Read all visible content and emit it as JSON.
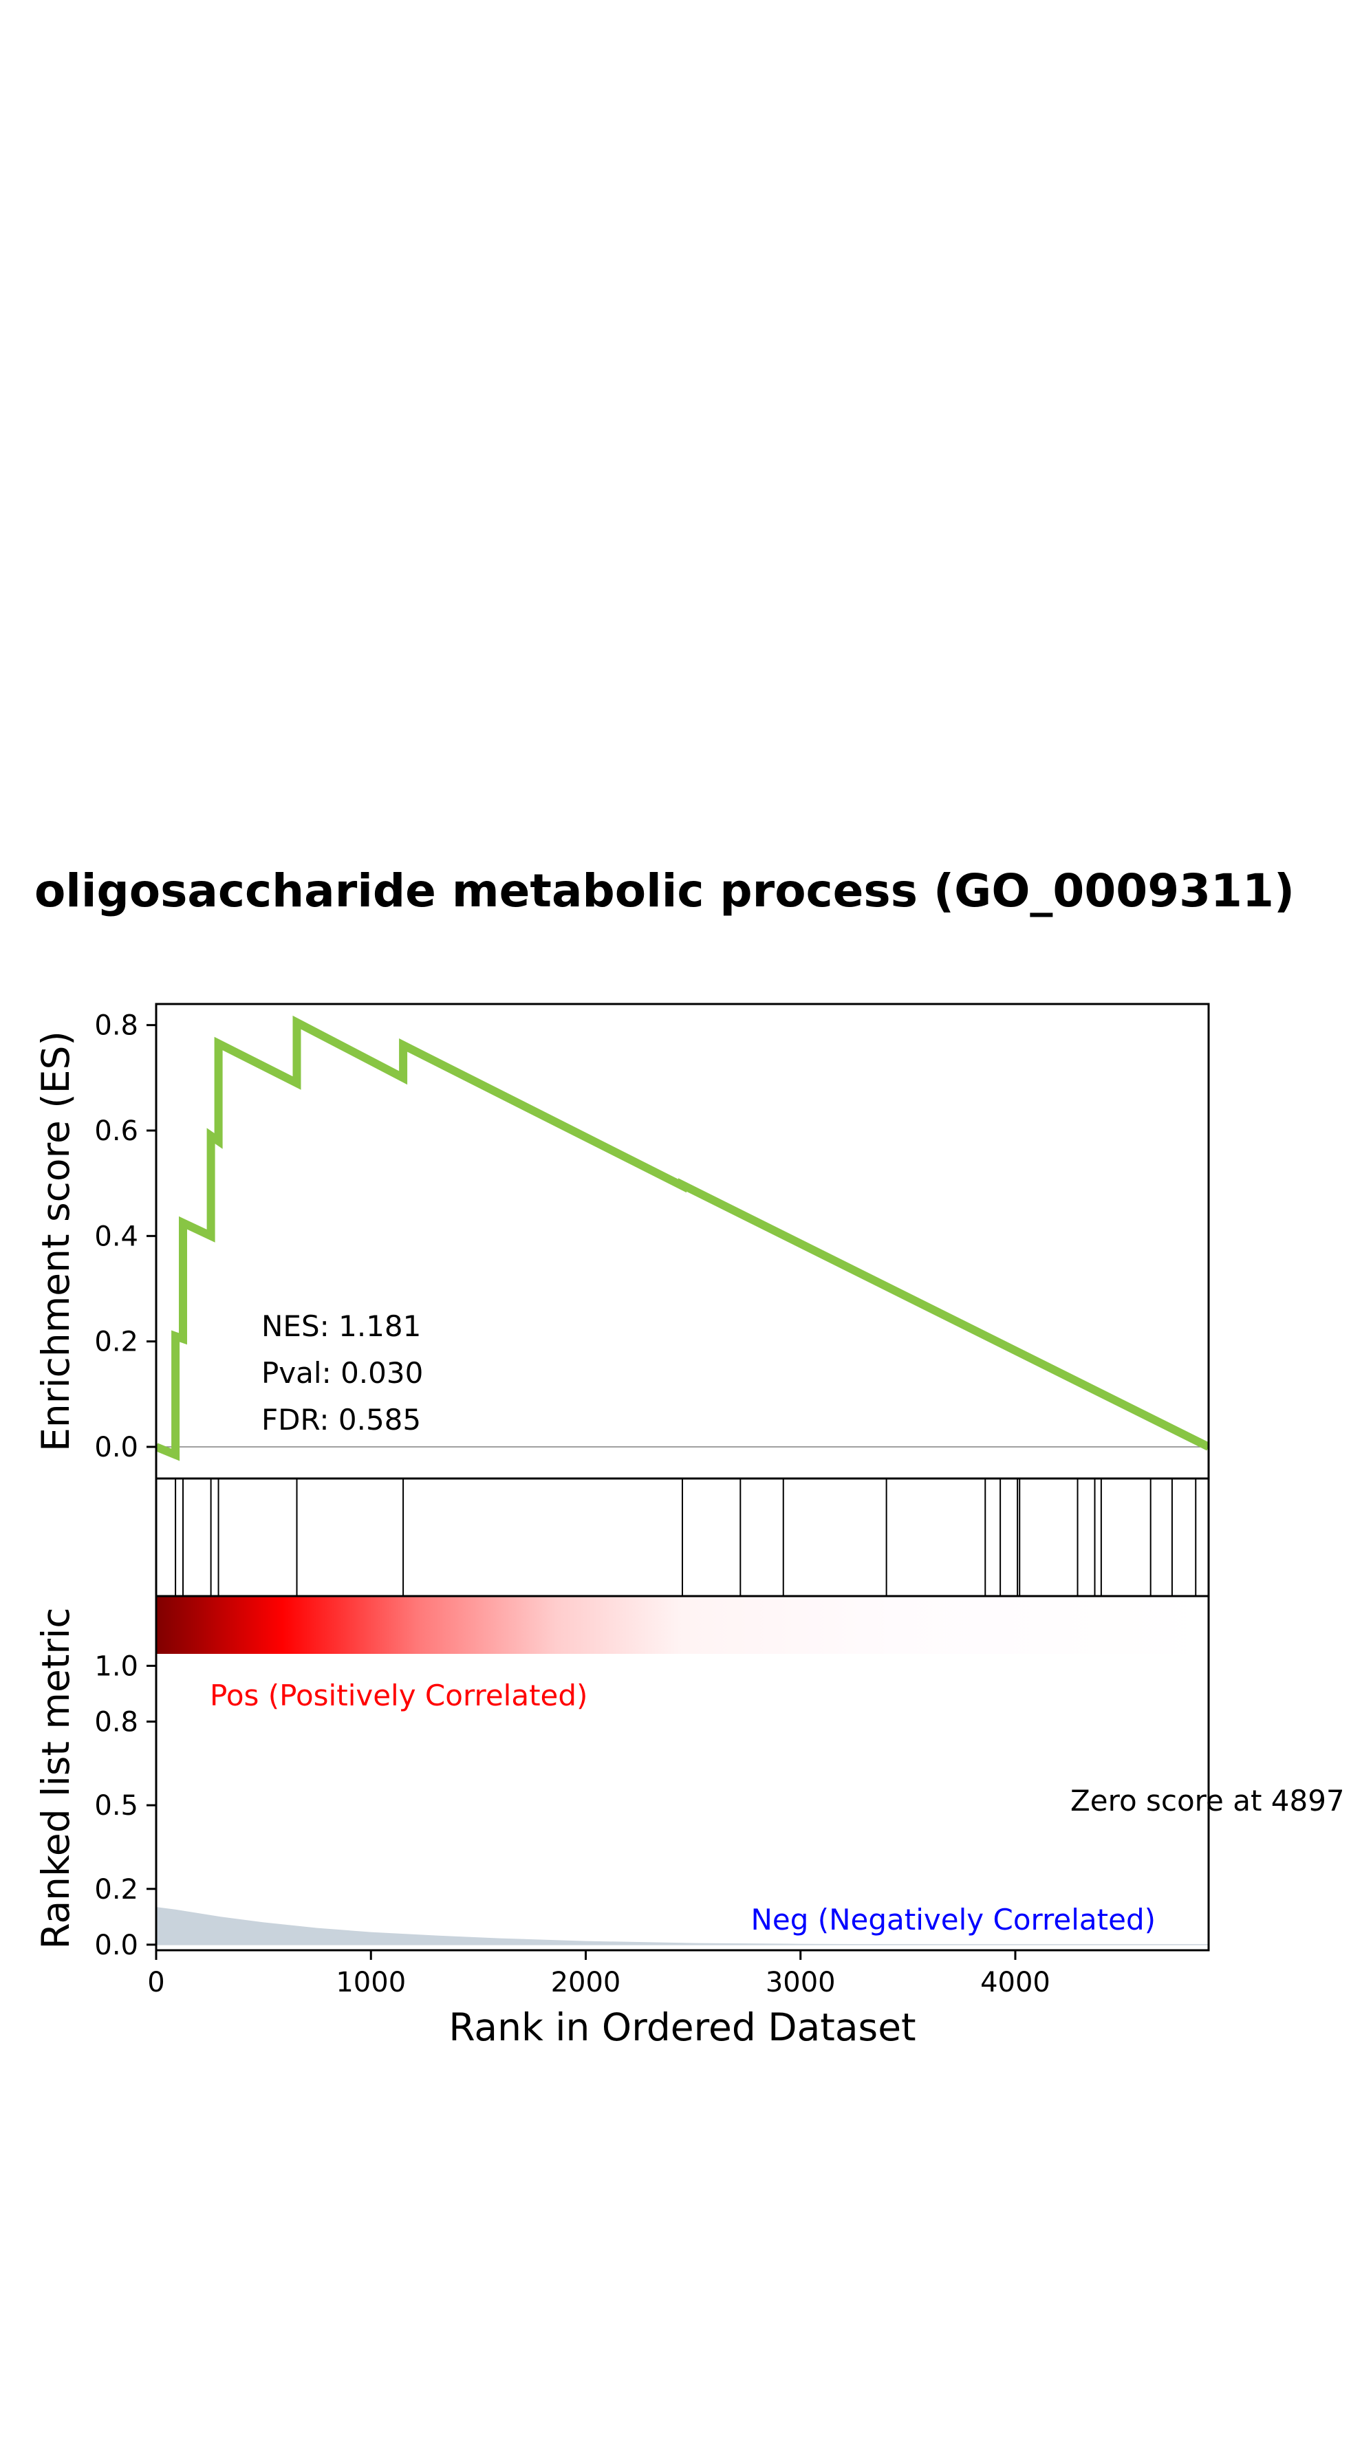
{
  "title": "oligosaccharide metabolic process (GO_0009311)",
  "colors": {
    "es_line": "#88c544",
    "hit_line": "#000000",
    "pos_label": "#ff0000",
    "neg_label": "#0000ff",
    "metric_fill": "#c9d3dc",
    "zero_line": "#808080"
  },
  "stats": {
    "nes": "NES: 1.181",
    "pval": "Pval: 0.030",
    "fdr": "FDR: 0.585"
  },
  "labels": {
    "pos": "Pos (Positively Correlated)",
    "neg": "Neg (Negatively Correlated)",
    "zero_score": "Zero score at 4897"
  },
  "chart_data": [
    {
      "type": "line",
      "panel": "enrichment",
      "ylabel": "Enrichment score (ES)",
      "xlim": [
        0,
        4900
      ],
      "ylim": [
        -0.06,
        0.84
      ],
      "yticks": [
        0.0,
        0.2,
        0.4,
        0.6,
        0.8
      ],
      "ytick_labels": [
        "0.0",
        "0.2",
        "0.4",
        "0.6",
        "0.8"
      ],
      "series": [
        {
          "x": [
            0,
            90,
            90,
            125,
            125,
            255,
            255,
            290,
            290,
            655,
            655,
            1150,
            1150,
            2450,
            2450,
            4900
          ],
          "y": [
            0.0,
            -0.015,
            0.21,
            0.205,
            0.425,
            0.4,
            0.59,
            0.58,
            0.765,
            0.69,
            0.805,
            0.7,
            0.762,
            0.495,
            0.497,
            0.0
          ]
        }
      ],
      "hits": [
        90,
        125,
        255,
        290,
        655,
        1150,
        2450,
        2720,
        2920,
        3400,
        3860,
        3930,
        4010,
        4020,
        4290,
        4370,
        4400,
        4630,
        4730,
        4840
      ]
    },
    {
      "type": "area",
      "panel": "ranked_metric",
      "ylabel": "Ranked list metric",
      "xlabel": "Rank in Ordered Dataset",
      "xlim": [
        0,
        4900
      ],
      "xticks": [
        0,
        1000,
        2000,
        3000,
        4000
      ],
      "xtick_labels": [
        "0",
        "1000",
        "2000",
        "3000",
        "4000"
      ],
      "ylim": [
        -0.02,
        1.25
      ],
      "yticks": [
        0.0,
        0.2,
        0.5,
        0.8,
        1.0
      ],
      "ytick_labels": [
        "0.0",
        "0.2",
        "0.5",
        "0.8",
        "1.0"
      ],
      "series": [
        {
          "x": [
            0,
            100,
            300,
            500,
            750,
            1000,
            1300,
            1600,
            2000,
            2500,
            3000,
            3500,
            4000,
            4500,
            4900
          ],
          "y": [
            0.135,
            0.125,
            0.1,
            0.08,
            0.06,
            0.045,
            0.033,
            0.023,
            0.013,
            0.006,
            0.003,
            0.0015,
            0.0008,
            0.0003,
            0.0
          ]
        }
      ],
      "zero_score_rank": 4897
    }
  ]
}
